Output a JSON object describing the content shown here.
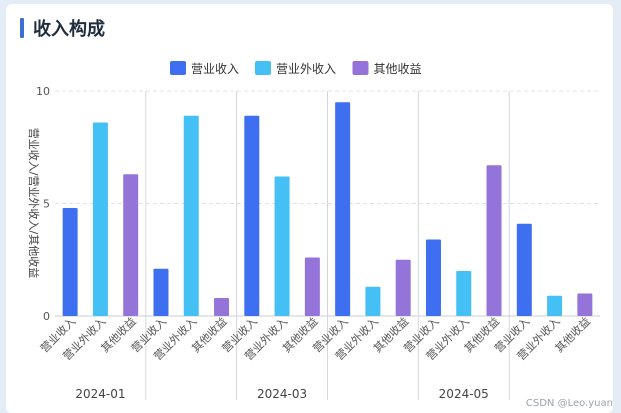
{
  "page": {
    "title": "收入构成",
    "watermark": "CSDN @Leo.yuan"
  },
  "colors": {
    "营业收入": "#3d6ff0",
    "营业外收入": "#44c0f5",
    "其他收益": "#9474d8"
  },
  "chart_data": {
    "type": "bar",
    "title": "收入构成",
    "ylabel": "营业收入/营业外收入/其他收益",
    "xlabel": "",
    "ylim": [
      0,
      10
    ],
    "yticks": [
      0,
      5,
      10
    ],
    "grid": true,
    "legend": "top-center",
    "legend_entries": [
      "营业收入",
      "营业外收入",
      "其他收益"
    ],
    "groups": [
      {
        "label": "2024-01",
        "bars": [
          {
            "name": "营业收入",
            "value": 4.8
          },
          {
            "name": "营业外收入",
            "value": 8.6
          },
          {
            "name": "其他收益",
            "value": 6.3
          }
        ]
      },
      {
        "label": "",
        "bars": [
          {
            "name": "营业收入",
            "value": 2.1
          },
          {
            "name": "营业外收入",
            "value": 8.9
          },
          {
            "name": "其他收益",
            "value": 0.8
          }
        ]
      },
      {
        "label": "2024-03",
        "bars": [
          {
            "name": "营业收入",
            "value": 8.9
          },
          {
            "name": "营业外收入",
            "value": 6.2
          },
          {
            "name": "其他收益",
            "value": 2.6
          }
        ]
      },
      {
        "label": "",
        "bars": [
          {
            "name": "营业收入",
            "value": 9.5
          },
          {
            "name": "营业外收入",
            "value": 1.3
          },
          {
            "name": "其他收益",
            "value": 2.5
          }
        ]
      },
      {
        "label": "2024-05",
        "bars": [
          {
            "name": "营业收入",
            "value": 3.4
          },
          {
            "name": "营业外收入",
            "value": 2.0
          },
          {
            "name": "其他收益",
            "value": 6.7
          }
        ]
      },
      {
        "label": "",
        "bars": [
          {
            "name": "营业收入",
            "value": 4.1
          },
          {
            "name": "营业外收入",
            "value": 0.9
          },
          {
            "name": "其他收益",
            "value": 1.0
          }
        ]
      }
    ]
  }
}
